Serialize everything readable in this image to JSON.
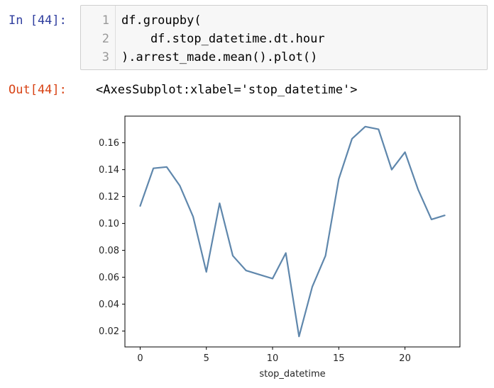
{
  "cell": {
    "in_prompt": "In [44]:",
    "out_prompt": "Out[44]:",
    "line_numbers": [
      "1",
      "2",
      "3"
    ],
    "code_lines": [
      "df.groupby(",
      "    df.stop_datetime.dt.hour",
      ").arrest_made.mean().plot()"
    ],
    "output_text": "<AxesSubplot:xlabel='stop_datetime'>"
  },
  "colors": {
    "in_prompt": "#303f9f",
    "out_prompt": "#d84315",
    "line": "#5f87ac"
  },
  "chart_data": {
    "type": "line",
    "xlabel": "stop_datetime",
    "ylabel": "",
    "title": "",
    "x": [
      0,
      1,
      2,
      3,
      4,
      5,
      6,
      7,
      8,
      9,
      10,
      11,
      12,
      13,
      14,
      15,
      16,
      17,
      18,
      19,
      20,
      21,
      22,
      23
    ],
    "series": [
      {
        "values": [
          0.113,
          0.141,
          0.142,
          0.128,
          0.105,
          0.064,
          0.115,
          0.076,
          0.065,
          0.062,
          0.059,
          0.078,
          0.016,
          0.053,
          0.076,
          0.133,
          0.163,
          0.172,
          0.17,
          0.14,
          0.153,
          0.125,
          0.103,
          0.106
        ]
      }
    ],
    "xlim": [
      -1.15,
      24.15
    ],
    "ylim": [
      0.0082,
      0.1798
    ],
    "xticks": [
      0,
      5,
      10,
      15,
      20
    ],
    "yticks": [
      0.02,
      0.04,
      0.06,
      0.08,
      0.1,
      0.12,
      0.14,
      0.16
    ],
    "ytick_labels": [
      "0.02",
      "0.04",
      "0.06",
      "0.08",
      "0.10",
      "0.12",
      "0.14",
      "0.16"
    ],
    "grid": false
  }
}
